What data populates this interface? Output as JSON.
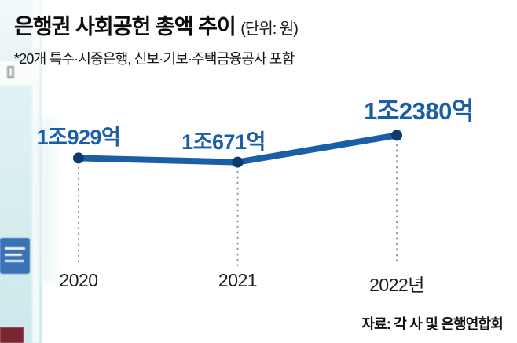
{
  "header": {
    "title": "은행권 사회공헌 총액 추이",
    "unit": "(단위: 원)",
    "subtitle": "*20개 특수·시중은행, 신보·기보·주택금융공사 포함"
  },
  "chart_data": {
    "type": "line",
    "title": "은행권 사회공헌 총액 추이",
    "unit": "원",
    "categories": [
      "2020",
      "2021",
      "2022년"
    ],
    "values": [
      10929,
      10671,
      12380
    ],
    "value_labels": [
      "1조929억",
      "1조671억",
      "1조2380억"
    ],
    "ylim": [
      9000,
      14000
    ],
    "xlabel": "",
    "ylabel": "",
    "grid": false,
    "legend": "none",
    "line_color": "#1a5ea8",
    "dot_color": "#0d3a6b",
    "leader_line_color": "#9a9a9a"
  },
  "footer": {
    "source": "자료: 각 사 및 은행연합회"
  }
}
